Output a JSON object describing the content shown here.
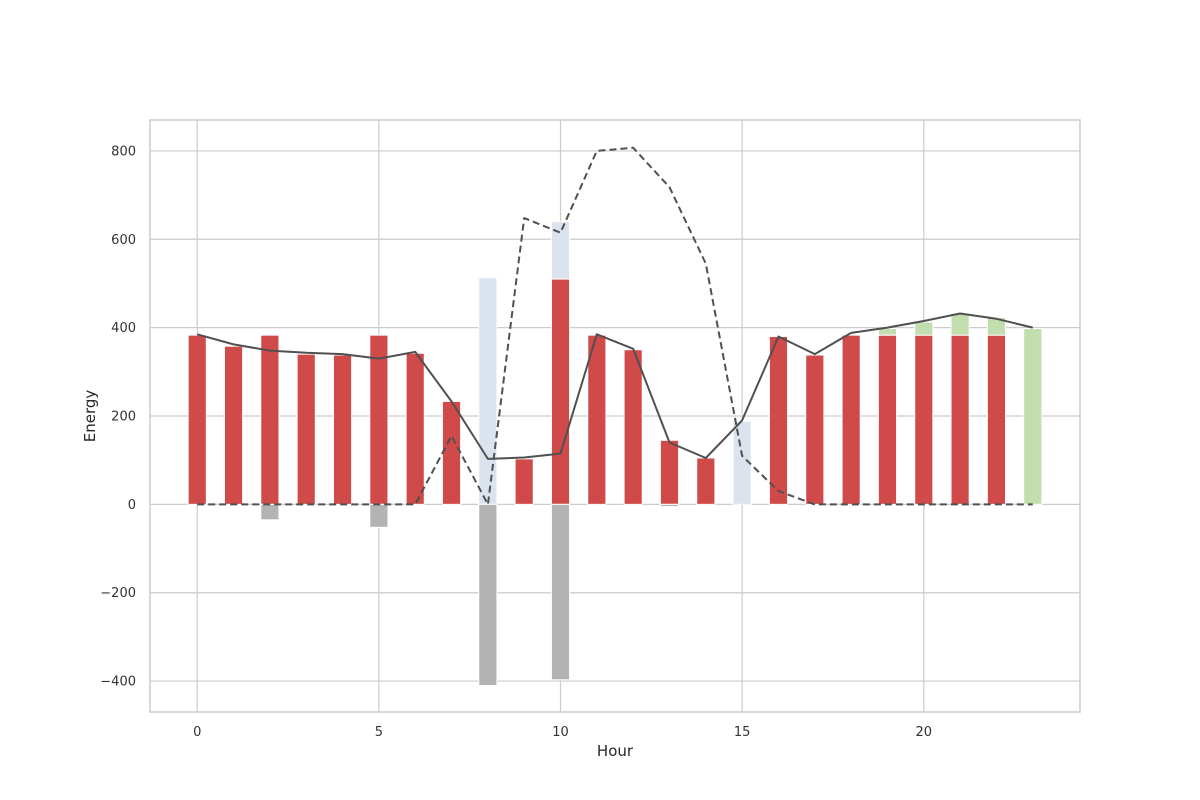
{
  "chart_data": {
    "type": "bar",
    "xlabel": "Hour",
    "ylabel": "Energy",
    "xlim": [
      -1.3,
      24.3
    ],
    "ylim": [
      -470,
      870
    ],
    "xticks": [
      0,
      5,
      10,
      15,
      20
    ],
    "yticks": [
      -400,
      -200,
      0,
      200,
      400,
      600,
      800
    ],
    "grid": true,
    "x": [
      0,
      1,
      2,
      3,
      4,
      5,
      6,
      7,
      8,
      9,
      10,
      11,
      12,
      13,
      14,
      15,
      16,
      17,
      18,
      19,
      20,
      21,
      22,
      23
    ],
    "bar_series": [
      {
        "color": "#d04a4a",
        "values": [
          383,
          358,
          383,
          340,
          338,
          383,
          342,
          233,
          0,
          103,
          510,
          383,
          350,
          145,
          105,
          0,
          380,
          338,
          383,
          383,
          383,
          383,
          383,
          0
        ]
      },
      {
        "color": "#dbe4ee",
        "values": [
          0,
          0,
          0,
          0,
          0,
          0,
          0,
          0,
          513,
          0,
          130,
          0,
          0,
          0,
          0,
          188,
          0,
          0,
          0,
          0,
          0,
          0,
          0,
          0
        ]
      },
      {
        "color": "#c3deae",
        "values": [
          0,
          0,
          0,
          0,
          0,
          0,
          0,
          0,
          0,
          0,
          0,
          0,
          0,
          0,
          0,
          0,
          0,
          0,
          0,
          15,
          30,
          50,
          40,
          398
        ]
      },
      {
        "color": "#b3b3b3",
        "values": [
          0,
          0,
          -35,
          0,
          0,
          -52,
          0,
          0,
          -410,
          0,
          -397,
          0,
          0,
          -5,
          0,
          0,
          0,
          0,
          0,
          0,
          0,
          0,
          0,
          0
        ]
      }
    ],
    "line_series": [
      {
        "style": "solid",
        "color": "#505050",
        "values": [
          385,
          362,
          348,
          343,
          340,
          330,
          345,
          233,
          103,
          106,
          115,
          385,
          352,
          140,
          105,
          190,
          380,
          340,
          388,
          400,
          415,
          432,
          420,
          400
        ]
      },
      {
        "style": "dashed",
        "color": "#505050",
        "values": [
          0,
          0,
          0,
          0,
          0,
          0,
          0,
          155,
          0,
          648,
          615,
          800,
          807,
          718,
          545,
          110,
          30,
          0,
          0,
          0,
          0,
          0,
          0,
          0
        ]
      }
    ]
  }
}
